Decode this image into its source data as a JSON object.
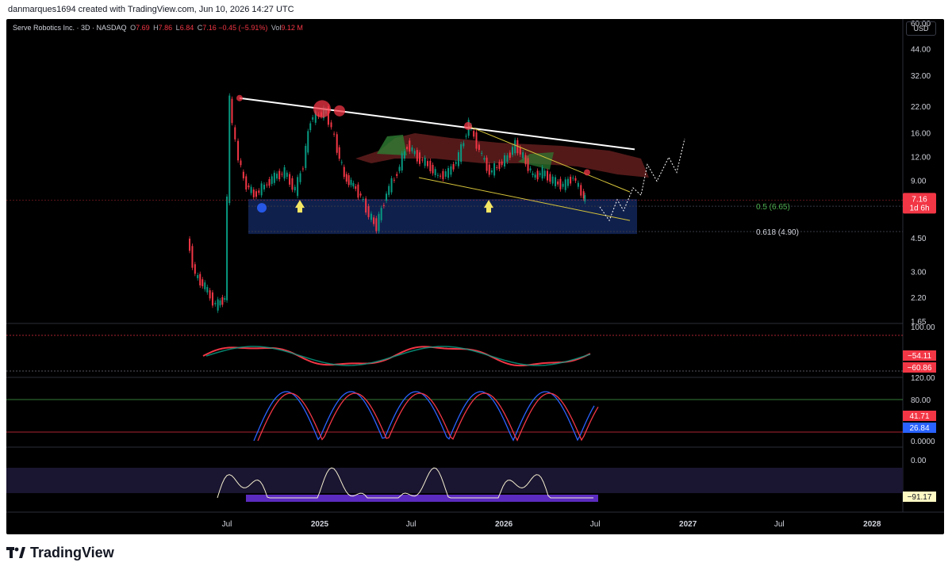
{
  "header": {
    "credit": "danmarques1694 created with TradingView.com, Jun 10, 2026 14:27 UTC"
  },
  "legend": {
    "symbol": "Serve Robotics Inc. · 3D · NASDAQ",
    "o_label": "O",
    "o_value": "7.69",
    "h_label": "H",
    "h_value": "7.86",
    "l_label": "L",
    "l_value": "6.84",
    "c_label": "C",
    "c_value": "7.16",
    "change": "−0.45 (−5.91%)",
    "vol_label": "Vol",
    "vol_value": "9.12 M"
  },
  "price_axis": {
    "currency": "USD",
    "ticks": [
      "60.00",
      "44.00",
      "32.00",
      "22.00",
      "16.00",
      "12.00",
      "9.00",
      "4.50",
      "3.00",
      "2.20",
      "1.65"
    ],
    "last_price": "7.16",
    "countdown": "1d 6h"
  },
  "fib_labels": {
    "level_05": "0.5 (6.65)",
    "level_0618": "0.618 (4.90)"
  },
  "panes": {
    "osc1": {
      "ticks": [
        "100.00"
      ],
      "tag_red": "−54.11",
      "tag_red2": "−60.86"
    },
    "osc2": {
      "ticks": [
        "120.00",
        "80.00",
        "0.0000"
      ],
      "tag_red": "41.71",
      "tag_blue": "26.84"
    },
    "osc3": {
      "ticks": [
        "0.00"
      ],
      "tag_value": "−91.17"
    }
  },
  "time_axis": [
    "Jul",
    "2025",
    "Jul",
    "2026",
    "Jul",
    "2027",
    "Jul",
    "2028"
  ],
  "colors": {
    "background": "#000000",
    "up": "#089981",
    "down": "#f23645",
    "trend_line": "#ffffff",
    "channel": "#d4c23a",
    "fib_zone": "#1e3a8a",
    "oscillator_blue": "#2962ff",
    "cci_line": "#f5f0d0",
    "cci_band": "#5b2bbf"
  },
  "footer": {
    "brand": "TradingView"
  },
  "chart_data": {
    "type": "line",
    "symbol": "Serve Robotics Inc.",
    "interval": "3D",
    "exchange": "NASDAQ",
    "y_scale": "log",
    "ohlc_last": {
      "open": 7.69,
      "high": 7.86,
      "low": 6.84,
      "close": 7.16
    },
    "change": -0.45,
    "change_pct": -5.91,
    "volume": "9.12 M",
    "series": [
      {
        "x": [
          "2024-04-15",
          "2024-05-01",
          "2024-05-20",
          "2024-06-10",
          "2024-06-28",
          "2024-07-08",
          "2024-07-20",
          "2024-08-05",
          "2024-08-25",
          "2024-09-15",
          "2024-10-05",
          "2024-10-25",
          "2024-11-15",
          "2024-12-01",
          "2024-12-15",
          "2025-01-01",
          "2025-01-15",
          "2025-02-01",
          "2025-02-20",
          "2025-03-10",
          "2025-03-25",
          "2025-04-10",
          "2025-04-25",
          "2025-05-15",
          "2025-06-05",
          "2025-06-25",
          "2025-07-15",
          "2025-08-05",
          "2025-08-25",
          "2025-09-15",
          "2025-10-05",
          "2025-10-25",
          "2025-11-15",
          "2025-12-05",
          "2025-12-25",
          "2026-01-10",
          "2026-01-25",
          "2026-02-10",
          "2026-03-01",
          "2026-03-20",
          "2026-04-10",
          "2026-04-30",
          "2026-05-20",
          "2026-06-05",
          "2026-06-10"
        ],
        "values": [
          4.5,
          2.9,
          2.5,
          2.0,
          2.2,
          24,
          14,
          9,
          7.6,
          8.5,
          9.5,
          10,
          8.0,
          11,
          19,
          20,
          21,
          15,
          9.5,
          8.5,
          7.5,
          6.0,
          5.2,
          7.8,
          10,
          14,
          12,
          11,
          9.5,
          10,
          12,
          18,
          13,
          10,
          11,
          12,
          14,
          12,
          9.5,
          10,
          9.0,
          8.5,
          9.5,
          7.8,
          7.16
        ]
      }
    ],
    "ylim": [
      1.65,
      60
    ],
    "annotations": [
      "0.5 (6.65)",
      "0.618 (4.90)"
    ]
  }
}
